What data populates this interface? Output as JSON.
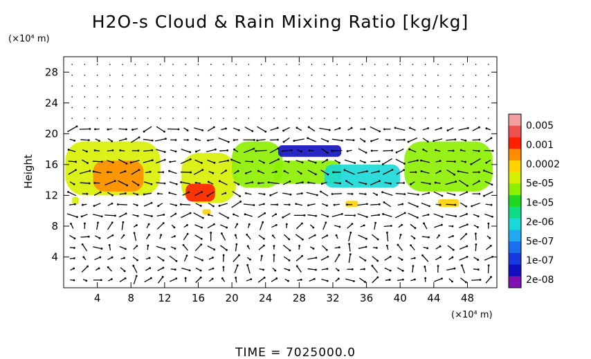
{
  "chart_data": {
    "type": "heatmap",
    "title": "H2O-s Cloud & Rain Mixing Ratio [kg/kg]",
    "ylabel": "Height",
    "y_unit": "(×10⁴ m)",
    "x_unit": "(×10⁴ m)",
    "xlim": [
      0,
      51.5
    ],
    "ylim": [
      0,
      30
    ],
    "x_ticks": [
      4,
      8,
      12,
      16,
      20,
      24,
      28,
      32,
      36,
      40,
      44,
      48
    ],
    "y_ticks": [
      4,
      8,
      12,
      16,
      20,
      24,
      28
    ],
    "colorbar": {
      "labels": [
        "0.005",
        "0.001",
        "0.0002",
        "5e-05",
        "1e-05",
        "2e-06",
        "5e-07",
        "1e-07",
        "2e-08"
      ],
      "colors": [
        "#f5a0a0",
        "#f05050",
        "#ff2000",
        "#ff8c00",
        "#ffd200",
        "#d8f000",
        "#8cf000",
        "#20d820",
        "#10dc88",
        "#18d8d8",
        "#20a8f0",
        "#1870f0",
        "#1838e0",
        "#1010c0",
        "#8010b0"
      ]
    },
    "cloud_regions": [
      {
        "x0": 0.2,
        "x1": 11.5,
        "y0": 12.0,
        "y1": 19.0,
        "level": 5
      },
      {
        "x0": 3.5,
        "x1": 9.5,
        "y0": 12.5,
        "y1": 16.5,
        "level": 3
      },
      {
        "x0": 14.0,
        "x1": 20.5,
        "y0": 11.0,
        "y1": 17.5,
        "level": 5
      },
      {
        "x0": 14.5,
        "x1": 18.0,
        "y0": 11.2,
        "y1": 13.5,
        "level": 2
      },
      {
        "x0": 20.0,
        "x1": 26.0,
        "y0": 13.0,
        "y1": 19.0,
        "level": 6
      },
      {
        "x0": 25.0,
        "x1": 33.0,
        "y0": 13.5,
        "y1": 16.5,
        "level": 6
      },
      {
        "x0": 25.5,
        "x1": 33.0,
        "y0": 17.0,
        "y1": 18.5,
        "level": 13
      },
      {
        "x0": 31.0,
        "x1": 40.0,
        "y0": 13.0,
        "y1": 16.0,
        "level": 9
      },
      {
        "x0": 40.5,
        "x1": 51.0,
        "y0": 12.5,
        "y1": 19.0,
        "level": 6
      },
      {
        "x0": 44.5,
        "x1": 47.0,
        "y0": 10.5,
        "y1": 11.5,
        "level": 4
      },
      {
        "x0": 33.5,
        "x1": 35.0,
        "y0": 10.5,
        "y1": 11.3,
        "level": 4
      },
      {
        "x0": 1.0,
        "x1": 1.8,
        "y0": 10.8,
        "y1": 11.8,
        "level": 5
      },
      {
        "x0": 16.5,
        "x1": 17.5,
        "y0": 9.5,
        "y1": 10.2,
        "level": 4
      }
    ],
    "time_label": "TIME = 7025000.0"
  }
}
